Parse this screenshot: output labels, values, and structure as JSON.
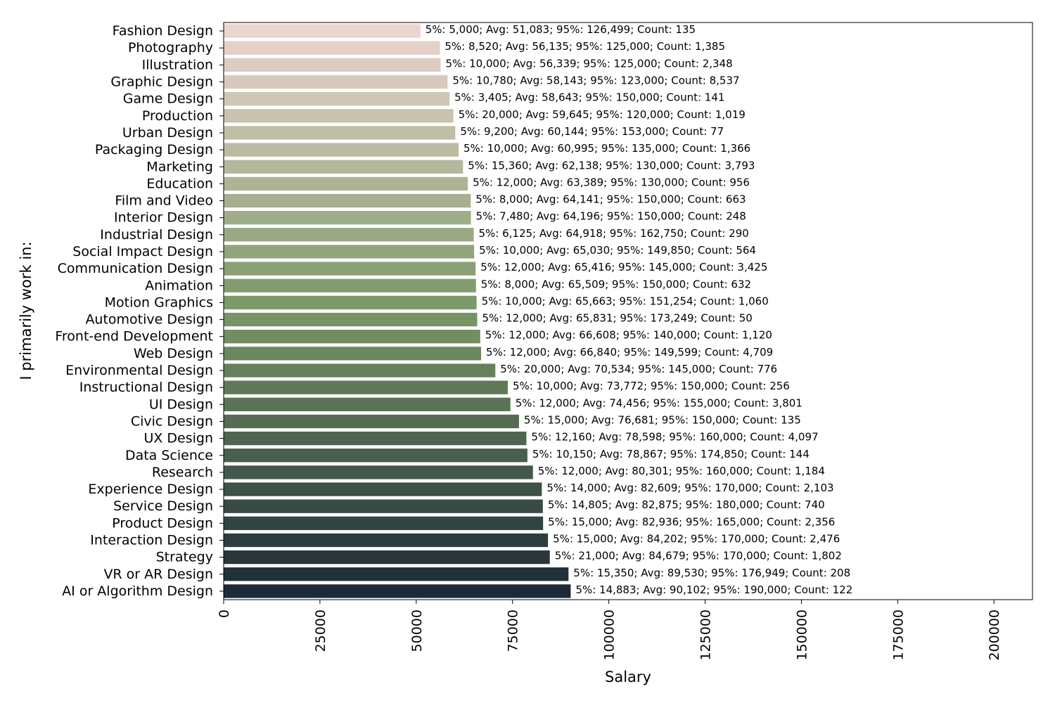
{
  "chart_data": {
    "type": "bar",
    "orientation": "horizontal",
    "xlabel": "Salary",
    "ylabel": "I primarily work in:",
    "xlim": [
      0,
      210000
    ],
    "xticks": [
      0,
      25000,
      50000,
      75000,
      100000,
      125000,
      150000,
      175000,
      200000
    ],
    "xtick_labels": [
      "0",
      "25000",
      "50000",
      "75000",
      "100000",
      "125000",
      "150000",
      "175000",
      "200000"
    ],
    "grid": false,
    "palette": {
      "light": "#ead5cf",
      "mid": "#7a9765",
      "dark": "#1b2a36"
    },
    "categories": [
      "Fashion Design",
      "Photography",
      "Illustration",
      "Graphic Design",
      "Game Design",
      "Production",
      "Urban Design",
      "Packaging Design",
      "Marketing",
      "Education",
      "Film and Video",
      "Interior Design",
      "Industrial Design",
      "Social Impact Design",
      "Communication Design",
      "Animation",
      "Motion Graphics",
      "Automotive Design",
      "Front-end Development",
      "Web Design",
      "Environmental Design",
      "Instructional Design",
      "UI Design",
      "Civic Design",
      "UX Design",
      "Data Science",
      "Research",
      "Experience Design",
      "Service Design",
      "Product Design",
      "Interaction Design",
      "Strategy",
      "VR or AR Design",
      "AI or Algorithm Design"
    ],
    "values": [
      51083,
      56135,
      56339,
      58143,
      58643,
      59645,
      60144,
      60995,
      62138,
      63389,
      64141,
      64196,
      64918,
      65030,
      65416,
      65509,
      65663,
      65831,
      66608,
      66840,
      70534,
      73772,
      74456,
      76681,
      78598,
      78867,
      80301,
      82609,
      82875,
      82936,
      84202,
      84679,
      89530,
      90102
    ],
    "data_labels": [
      "5%: 5,000; Avg: 51,083; 95%: 126,499; Count: 135",
      "5%: 8,520; Avg: 56,135; 95%: 125,000; Count: 1,385",
      "5%: 10,000; Avg: 56,339; 95%: 125,000; Count: 2,348",
      "5%: 10,780; Avg: 58,143; 95%: 123,000; Count: 8,537",
      "5%: 3,405; Avg: 58,643; 95%: 150,000; Count: 141",
      "5%: 20,000; Avg: 59,645; 95%: 120,000; Count: 1,019",
      "5%: 9,200; Avg: 60,144; 95%: 153,000; Count: 77",
      "5%: 10,000; Avg: 60,995; 95%: 135,000; Count: 1,366",
      "5%: 15,360; Avg: 62,138; 95%: 130,000; Count: 3,793",
      "5%: 12,000; Avg: 63,389; 95%: 130,000; Count: 956",
      "5%: 8,000; Avg: 64,141; 95%: 150,000; Count: 663",
      "5%: 7,480; Avg: 64,196; 95%: 150,000; Count: 248",
      "5%: 6,125; Avg: 64,918; 95%: 162,750; Count: 290",
      "5%: 10,000; Avg: 65,030; 95%: 149,850; Count: 564",
      "5%: 12,000; Avg: 65,416; 95%: 145,000; Count: 3,425",
      "5%: 8,000; Avg: 65,509; 95%: 150,000; Count: 632",
      "5%: 10,000; Avg: 65,663; 95%: 151,254; Count: 1,060",
      "5%: 12,000; Avg: 65,831; 95%: 173,249; Count: 50",
      "5%: 12,000; Avg: 66,608; 95%: 140,000; Count: 1,120",
      "5%: 12,000; Avg: 66,840; 95%: 149,599; Count: 4,709",
      "5%: 20,000; Avg: 70,534; 95%: 145,000; Count: 776",
      "5%: 10,000; Avg: 73,772; 95%: 150,000; Count: 256",
      "5%: 12,000; Avg: 74,456; 95%: 155,000; Count: 3,801",
      "5%: 15,000; Avg: 76,681; 95%: 150,000; Count: 135",
      "5%: 12,160; Avg: 78,598; 95%: 160,000; Count: 4,097",
      "5%: 10,150; Avg: 78,867; 95%: 174,850; Count: 144",
      "5%: 12,000; Avg: 80,301; 95%: 160,000; Count: 1,184",
      "5%: 14,000; Avg: 82,609; 95%: 170,000; Count: 2,103",
      "5%: 14,805; Avg: 82,875; 95%: 180,000; Count: 740",
      "5%: 15,000; Avg: 82,936; 95%: 165,000; Count: 2,356",
      "5%: 15,000; Avg: 84,202; 95%: 170,000; Count: 2,476",
      "5%: 21,000; Avg: 84,679; 95%: 170,000; Count: 1,802",
      "5%: 15,350; Avg: 89,530; 95%: 176,949; Count: 208",
      "5%: 14,883; Avg: 90,102; 95%: 190,000; Count: 122"
    ]
  }
}
